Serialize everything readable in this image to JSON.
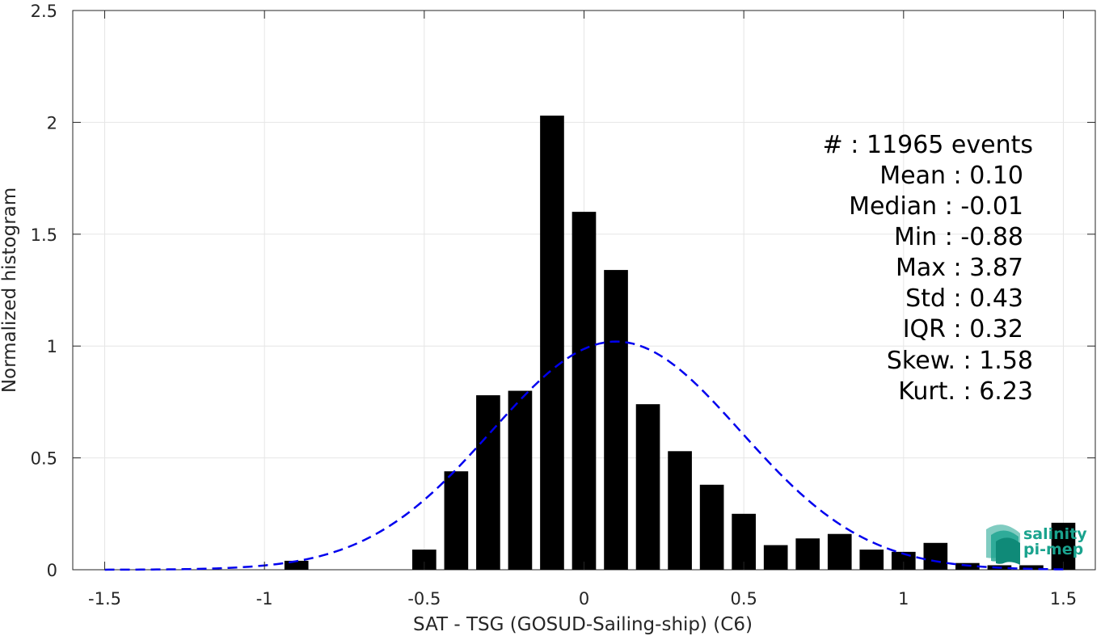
{
  "chart_data": {
    "type": "bar",
    "xlabel": "SAT - TSG (GOSUD-Sailing-ship) (C6)",
    "ylabel": "Normalized histogram",
    "xlim": [
      -1.6,
      1.6
    ],
    "ylim": [
      0,
      2.5
    ],
    "xticks": [
      "-1.5",
      "-1",
      "-0.5",
      "0",
      "0.5",
      "1",
      "1.5"
    ],
    "xtick_values": [
      -1.5,
      -1,
      -0.5,
      0,
      0.5,
      1,
      1.5
    ],
    "yticks": [
      "0",
      "0.5",
      "1",
      "1.5",
      "2",
      "2.5"
    ],
    "ytick_values": [
      0,
      0.5,
      1,
      1.5,
      2,
      2.5
    ],
    "grid": true,
    "bar_width": 0.075,
    "bar_color": "#000000",
    "bars": [
      {
        "x": -0.9,
        "y": 0.04
      },
      {
        "x": -0.5,
        "y": 0.09
      },
      {
        "x": -0.4,
        "y": 0.44
      },
      {
        "x": -0.3,
        "y": 0.78
      },
      {
        "x": -0.2,
        "y": 0.8
      },
      {
        "x": -0.1,
        "y": 2.03
      },
      {
        "x": 0.0,
        "y": 1.6
      },
      {
        "x": 0.1,
        "y": 1.34
      },
      {
        "x": 0.2,
        "y": 0.74
      },
      {
        "x": 0.3,
        "y": 0.53
      },
      {
        "x": 0.4,
        "y": 0.38
      },
      {
        "x": 0.5,
        "y": 0.25
      },
      {
        "x": 0.6,
        "y": 0.11
      },
      {
        "x": 0.7,
        "y": 0.14
      },
      {
        "x": 0.8,
        "y": 0.16
      },
      {
        "x": 0.9,
        "y": 0.09
      },
      {
        "x": 1.0,
        "y": 0.08
      },
      {
        "x": 1.1,
        "y": 0.12
      },
      {
        "x": 1.2,
        "y": 0.03
      },
      {
        "x": 1.3,
        "y": 0.02
      },
      {
        "x": 1.4,
        "y": 0.02
      },
      {
        "x": 1.5,
        "y": 0.21
      }
    ],
    "gaussian_fit": {
      "mean": 0.1,
      "std": 0.39,
      "peak": 1.02,
      "x_range": [
        -1.5,
        1.5
      ],
      "color": "#0000ee",
      "style": "dashed"
    },
    "annotations": [
      "#  : 11965 events",
      "Mean : 0.10",
      "Median : -0.01",
      "Min : -0.88",
      "Max : 3.87",
      "Std : 0.43",
      "IQR : 0.32",
      "Skew. : 1.58",
      "Kurt. : 6.23"
    ]
  },
  "logo": {
    "line1": "salinity",
    "line2": "pi-mep",
    "color": "#1aa38e"
  }
}
